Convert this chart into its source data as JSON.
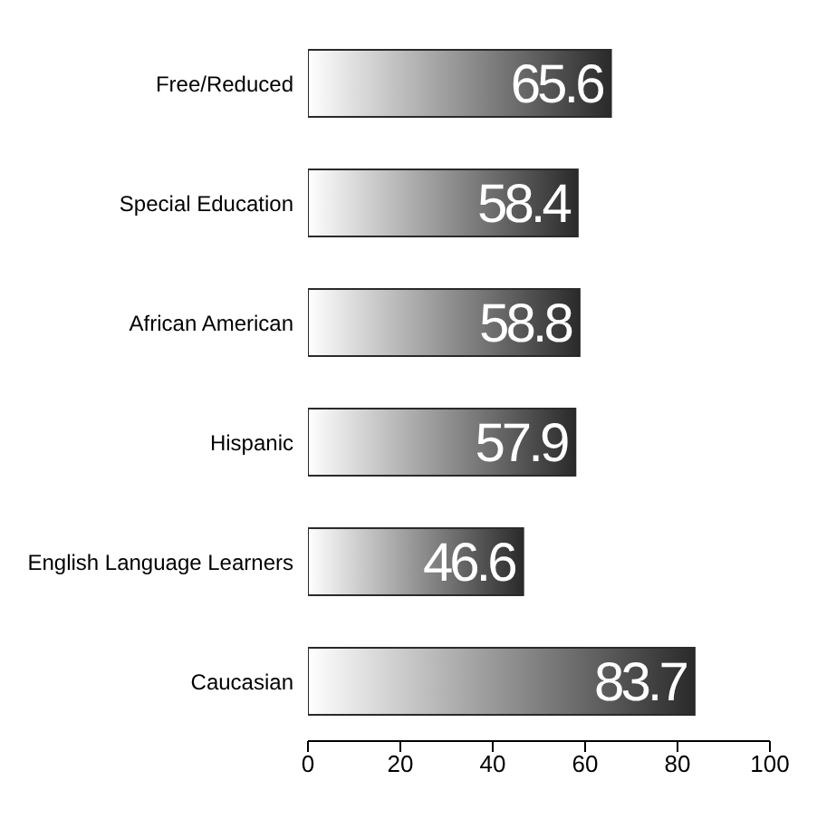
{
  "chart_data": {
    "type": "bar",
    "orientation": "horizontal",
    "categories": [
      "Free/Reduced",
      "Special Education",
      "African American",
      "Hispanic",
      "English Language Learners",
      "Caucasian"
    ],
    "values": [
      65.6,
      58.4,
      58.8,
      57.9,
      46.6,
      83.7
    ],
    "color": "#2a2a2a",
    "xlim": [
      0,
      100
    ],
    "xticks": [
      0,
      20,
      40,
      60,
      80,
      100
    ],
    "data_labels": true,
    "grid": false,
    "legend": false
  }
}
